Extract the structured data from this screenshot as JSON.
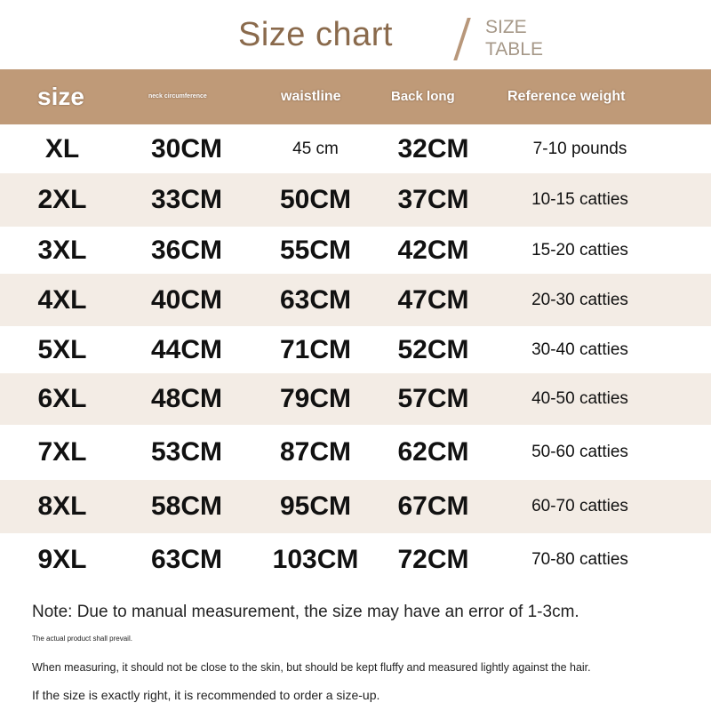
{
  "title": "Size chart",
  "subtitle": [
    "SIZE",
    "TABLE"
  ],
  "headers": [
    "size",
    "neck circumference",
    "waistline",
    "Back long",
    "Reference weight"
  ],
  "rows": [
    [
      "XL",
      "30CM",
      "45 cm",
      "32CM",
      "7-10 pounds"
    ],
    [
      "2XL",
      "33CM",
      "50CM",
      "37CM",
      "10-15 catties"
    ],
    [
      "3XL",
      "36CM",
      "55CM",
      "42CM",
      "15-20 catties"
    ],
    [
      "4XL",
      "40CM",
      "63CM",
      "47CM",
      "20-30 catties"
    ],
    [
      "5XL",
      "44CM",
      "71CM",
      "52CM",
      "30-40 catties"
    ],
    [
      "6XL",
      "48CM",
      "79CM",
      "57CM",
      "40-50 catties"
    ],
    [
      "7XL",
      "53CM",
      "87CM",
      "62CM",
      "50-60 catties"
    ],
    [
      "8XL",
      "58CM",
      "95CM",
      "67CM",
      "60-70 catties"
    ],
    [
      "9XL",
      "63CM",
      "103CM",
      "72CM",
      "70-80 catties"
    ]
  ],
  "notes": [
    "Note: Due to manual measurement, the size may have an error of 1-3cm.",
    "The actual product shall prevail.",
    "When measuring, it should not be close to the skin, but should be kept fluffy and measured lightly against the hair.",
    "If the size is exactly right, it is recommended to order a size-up."
  ],
  "colors": {
    "header": "#bf9a78",
    "stripe": "#f3ece5",
    "title": "#8a6a4c"
  }
}
